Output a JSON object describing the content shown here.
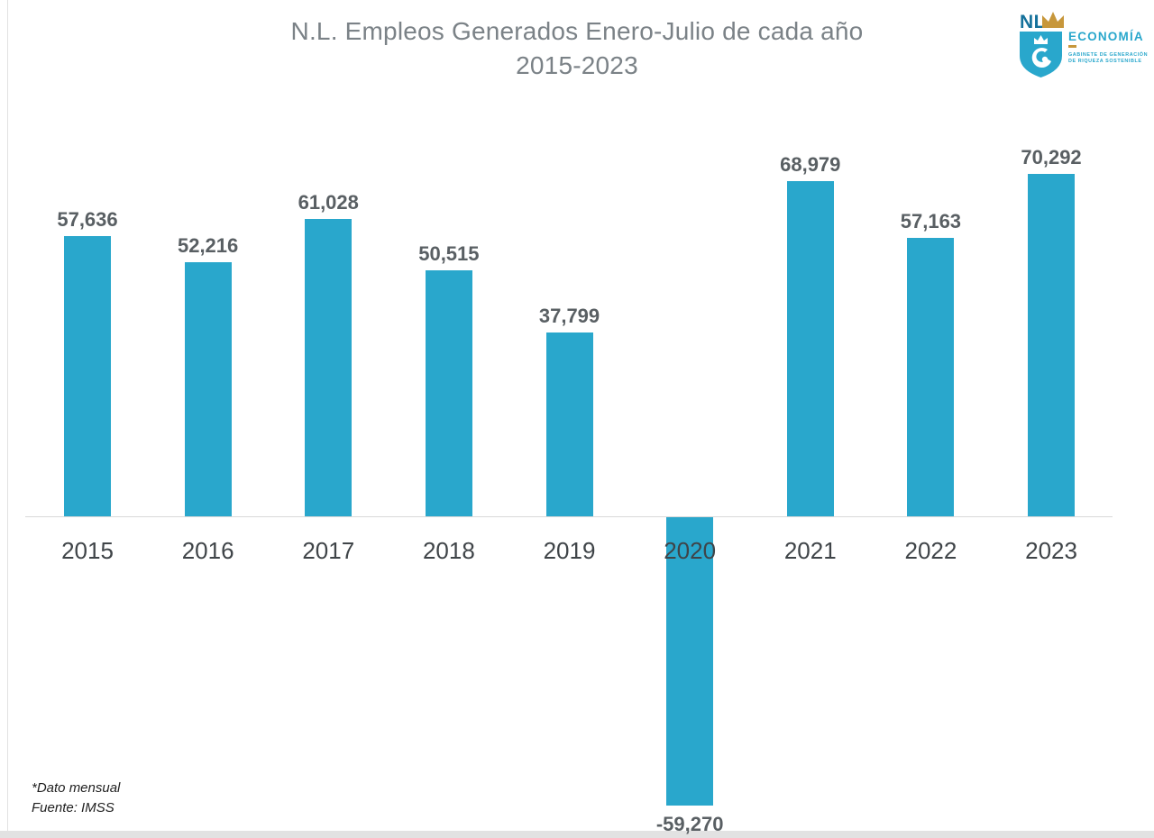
{
  "title": {
    "line1": "N.L. Empleos Generados Enero-Julio de cada año",
    "line2": "2015-2023"
  },
  "logo": {
    "nl": "NL",
    "brand": "ECONOMÍA",
    "tagline1": "GABINETE DE GENERACIÓN",
    "tagline2": "DE RIQUEZA SOSTENIBLE"
  },
  "footnote": {
    "line1": "*Dato mensual",
    "line2": "Fuente: IMSS"
  },
  "colors": {
    "bar": "#29a7cc",
    "title": "#7b8287",
    "data_label": "#595f63",
    "year_label": "#3f4448",
    "axis_line": "#d9d9d9",
    "footnote": "#1f1f1f",
    "frame": "#e2e2e2",
    "logo_cyan": "#29a7cc",
    "logo_navy": "#15719b",
    "logo_gold": "#c7973b"
  },
  "chart_data": {
    "type": "bar",
    "title": "N.L. Empleos Generados Enero-Julio de cada año 2015-2023",
    "categories": [
      "2015",
      "2016",
      "2017",
      "2018",
      "2019",
      "2020",
      "2021",
      "2022",
      "2023"
    ],
    "values": [
      57636,
      52216,
      61028,
      50515,
      37799,
      -59270,
      68979,
      57163,
      70292
    ],
    "labels": [
      "57,636",
      "52,216",
      "61,028",
      "50,515",
      "37,799",
      "-59,270",
      "68,979",
      "57,163",
      "70,292"
    ],
    "xlabel": "",
    "ylabel": "",
    "ylim": [
      -60000,
      72000
    ],
    "grid": false,
    "legend": false,
    "bar_color": "#29a7cc"
  }
}
